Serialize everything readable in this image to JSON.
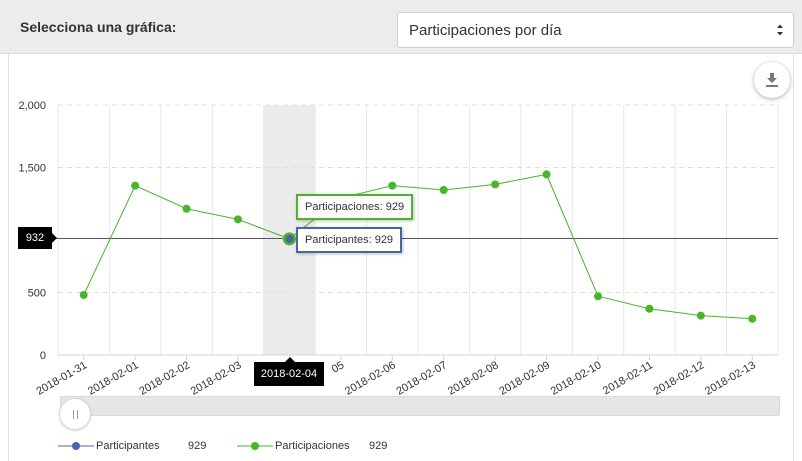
{
  "header": {
    "label": "Selecciona una gráfica:",
    "select_value": "Participaciones por día"
  },
  "icons": {
    "select_arrow": "up-down-caret-icon",
    "download": "download-icon"
  },
  "colors": {
    "participaciones": "#4ab52b",
    "participantes": "#4a64a8",
    "grid": "#e3e3e3"
  },
  "chart_data": {
    "type": "line",
    "categories": [
      "2018-01-31",
      "2018-02-01",
      "2018-02-02",
      "2018-02-03",
      "2018-02-04",
      "2018-02-05",
      "2018-02-06",
      "2018-02-07",
      "2018-02-08",
      "2018-02-09",
      "2018-02-10",
      "2018-02-11",
      "2018-02-12",
      "2018-02-13"
    ],
    "tick_labels": [
      "2018-01-31",
      "2018-02-01",
      "2018-02-02",
      "2018-02-03",
      "",
      "05",
      "2018-02-06",
      "2018-02-07",
      "2018-02-08",
      "2018-02-09",
      "2018-02-10",
      "2018-02-11",
      "2018-02-12",
      "2018-02-13"
    ],
    "series": [
      {
        "name": "Participaciones",
        "values": [
          480,
          1355,
          1170,
          1085,
          929,
          1255,
          1355,
          1320,
          1365,
          1445,
          470,
          370,
          315,
          290
        ]
      },
      {
        "name": "Participantes",
        "values": [
          null,
          null,
          null,
          null,
          929,
          null,
          null,
          null,
          null,
          null,
          null,
          null,
          null,
          null
        ]
      }
    ],
    "yticks": [
      0,
      500,
      1500,
      2000
    ],
    "ytick_labels": [
      "0",
      "500",
      "1,500",
      "2,000"
    ],
    "ylim": [
      0,
      2000
    ],
    "grid": true,
    "highlight_index": 4,
    "crosshair_y": 932,
    "crosshair_y_label": "932",
    "crosshair_x_label": "2018-02-04",
    "tooltips": {
      "participaciones": "Participaciones: 929",
      "participantes": "Participantes: 929"
    },
    "legend_placement": "bottom-left",
    "legend": [
      {
        "name": "Participantes",
        "value": "929"
      },
      {
        "name": "Participaciones",
        "value": "929"
      }
    ]
  }
}
